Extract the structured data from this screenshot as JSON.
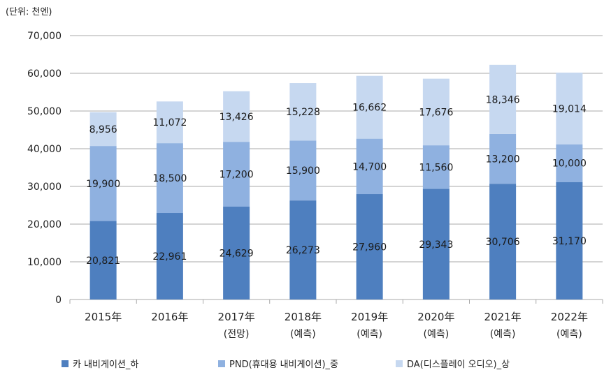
{
  "unit_note": "(단위: 천엔)",
  "colors": {
    "bottom": "#4e7fbf",
    "middle": "#8fb1e0",
    "top": "#c6d8f0",
    "grid": "#a8a8a8"
  },
  "chart_data": {
    "type": "bar",
    "stacked": true,
    "categories": [
      "2015年",
      "2016年",
      "2017年",
      "2018年",
      "2019年",
      "2020年",
      "2021年",
      "2022年"
    ],
    "category_sublabels": [
      "",
      "",
      "(전망)",
      "(예측)",
      "(예측)",
      "(예측)",
      "(예측)",
      "(예측)"
    ],
    "ylim": [
      0,
      70000
    ],
    "yticks": [
      "0",
      "10,000",
      "20,000",
      "30,000",
      "40,000",
      "50,000",
      "60,000",
      "70,000"
    ],
    "grid": true,
    "legend_position": "bottom",
    "series": [
      {
        "name": "카 내비게이션_하",
        "values": [
          20821,
          22961,
          24629,
          26273,
          27960,
          29343,
          30706,
          31170
        ],
        "labels": [
          "20,821",
          "22,961",
          "24,629",
          "26,273",
          "27,960",
          "29,343",
          "30,706",
          "31,170"
        ]
      },
      {
        "name": "PND(휴대용 내비게이션)_중",
        "values": [
          19900,
          18500,
          17200,
          15900,
          14700,
          11560,
          13200,
          10000
        ],
        "labels": [
          "19,900",
          "18,500",
          "17,200",
          "15,900",
          "14,700",
          "11,560",
          "13,200",
          "10,000"
        ]
      },
      {
        "name": "DA(디스플레이 오디오)_상",
        "values": [
          8956,
          11072,
          13426,
          15228,
          16662,
          17676,
          18346,
          19014
        ],
        "labels": [
          "8,956",
          "11,072",
          "13,426",
          "15,228",
          "16,662",
          "17,676",
          "18,346",
          "19,014"
        ]
      }
    ]
  }
}
